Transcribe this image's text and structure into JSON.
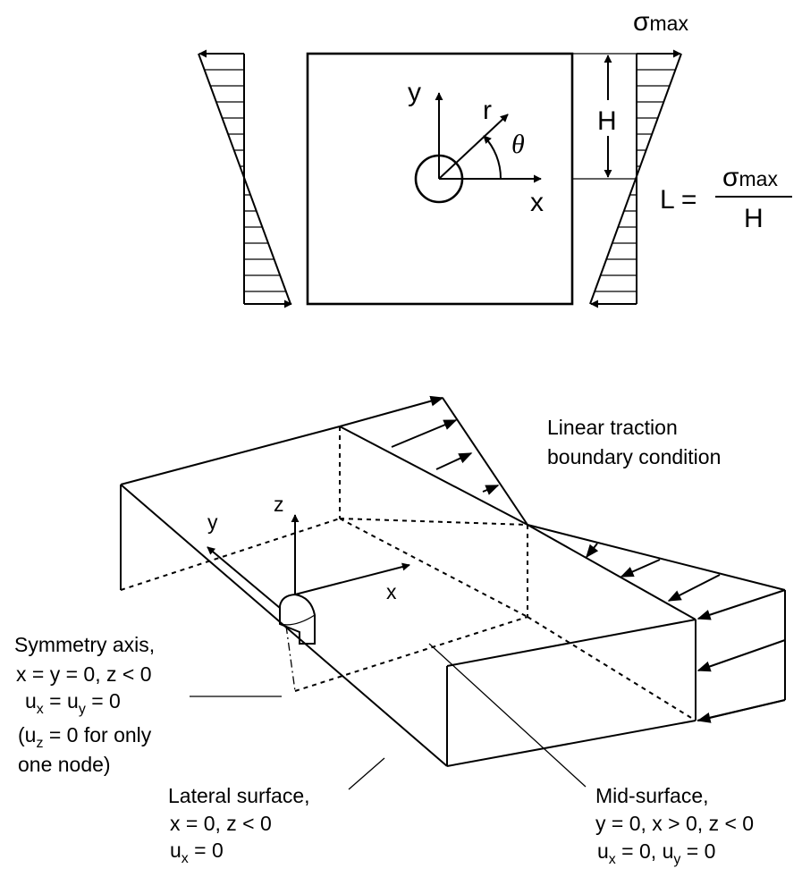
{
  "top_view": {
    "sigma_max": "σ",
    "sigma_max_sub": "max",
    "height_label": "H",
    "axis_x": "x",
    "axis_y": "y",
    "axis_r": "r",
    "angle_theta": "θ",
    "formula": {
      "lhs": "L =",
      "numerator": "σ",
      "numerator_sub": "max",
      "denominator": "H"
    }
  },
  "iso_view": {
    "axis_x": "x",
    "axis_y": "y",
    "axis_z": "z",
    "traction_label": {
      "line1": "Linear traction",
      "line2": "boundary condition"
    },
    "symmetry": {
      "line1": "Symmetry axis,",
      "line2": "x = y = 0, z < 0",
      "line3_a": "u",
      "line3_a_sub": "x",
      "line3_b": " = u",
      "line3_b_sub": "y",
      "line3_c": " = 0",
      "line4_a": "(u",
      "line4_a_sub": "z",
      "line4_b": " = 0 for only",
      "line5": "one node)"
    },
    "lateral": {
      "line1": "Lateral surface,",
      "line2": "x = 0, z < 0",
      "line3_a": "u",
      "line3_a_sub": "x",
      "line3_b": " = 0"
    },
    "mid": {
      "line1": "Mid-surface,",
      "line2": "y = 0, x > 0, z < 0",
      "line3_a": "u",
      "line3_a_sub": "x",
      "line3_b": " = 0, u",
      "line3_b_sub": "y",
      "line3_c": " = 0"
    }
  }
}
